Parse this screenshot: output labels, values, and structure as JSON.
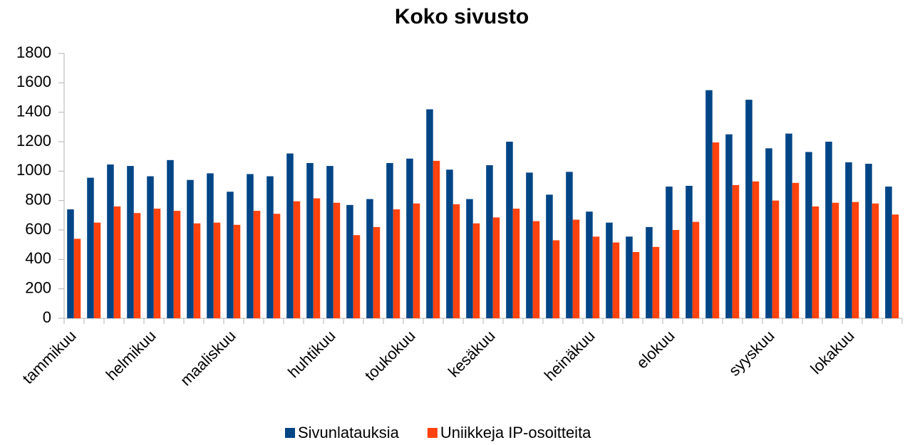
{
  "chart_data": {
    "type": "bar",
    "title": "Koko sivusto",
    "categories": [
      "tammikuu",
      null,
      null,
      null,
      "helmikuu",
      null,
      null,
      null,
      "maaliskuu",
      null,
      null,
      null,
      null,
      "huhtikuu",
      null,
      null,
      null,
      "toukokuu",
      null,
      null,
      null,
      "kesäkuu",
      null,
      null,
      null,
      null,
      "heinäkuu",
      null,
      null,
      null,
      "elokuu",
      null,
      null,
      null,
      null,
      "syyskuu",
      null,
      null,
      null,
      "lokakuu",
      null,
      null
    ],
    "series": [
      {
        "name": "Sivunlatauksia",
        "color": "#004586",
        "values": [
          740,
          955,
          1045,
          1035,
          965,
          1075,
          940,
          985,
          860,
          980,
          965,
          1120,
          1055,
          1035,
          770,
          810,
          1055,
          1085,
          1420,
          1010,
          810,
          1040,
          1200,
          990,
          840,
          995,
          725,
          650,
          555,
          620,
          895,
          900,
          1550,
          1250,
          1485,
          1155,
          1255,
          1130,
          1200,
          1060,
          1050,
          895
        ]
      },
      {
        "name": "Uniikkeja IP-osoitteita",
        "color": "#ff420e",
        "values": [
          540,
          650,
          760,
          715,
          745,
          730,
          645,
          650,
          635,
          730,
          710,
          795,
          815,
          785,
          565,
          620,
          740,
          780,
          1070,
          775,
          645,
          685,
          745,
          660,
          530,
          670,
          555,
          515,
          450,
          485,
          600,
          655,
          1195,
          905,
          930,
          800,
          920,
          760,
          785,
          790,
          780,
          705
        ]
      }
    ],
    "ylim": [
      0,
      1800
    ],
    "yticks": [
      0,
      200,
      400,
      600,
      800,
      1000,
      1200,
      1400,
      1600,
      1800
    ],
    "grid": false,
    "legend": "bottom"
  }
}
